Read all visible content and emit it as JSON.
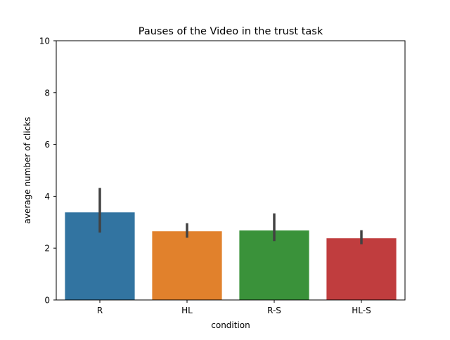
{
  "chart_data": {
    "type": "bar",
    "title": "Pauses of the Video in the trust task",
    "xlabel": "condition",
    "ylabel": "average number of clicks",
    "categories": [
      "R",
      "HL",
      "R-S",
      "HL-S"
    ],
    "values": [
      3.38,
      2.65,
      2.68,
      2.38
    ],
    "error_low": [
      2.6,
      2.4,
      2.27,
      2.15
    ],
    "error_high": [
      4.32,
      2.96,
      3.34,
      2.69
    ],
    "colors": [
      "#3274a1",
      "#e1812c",
      "#3a923a",
      "#c03d3e"
    ],
    "errorbar_color": "#424242",
    "ylim": [
      0,
      10
    ],
    "yticks": [
      0,
      2,
      4,
      6,
      8,
      10
    ],
    "grid": false,
    "legend": false
  }
}
